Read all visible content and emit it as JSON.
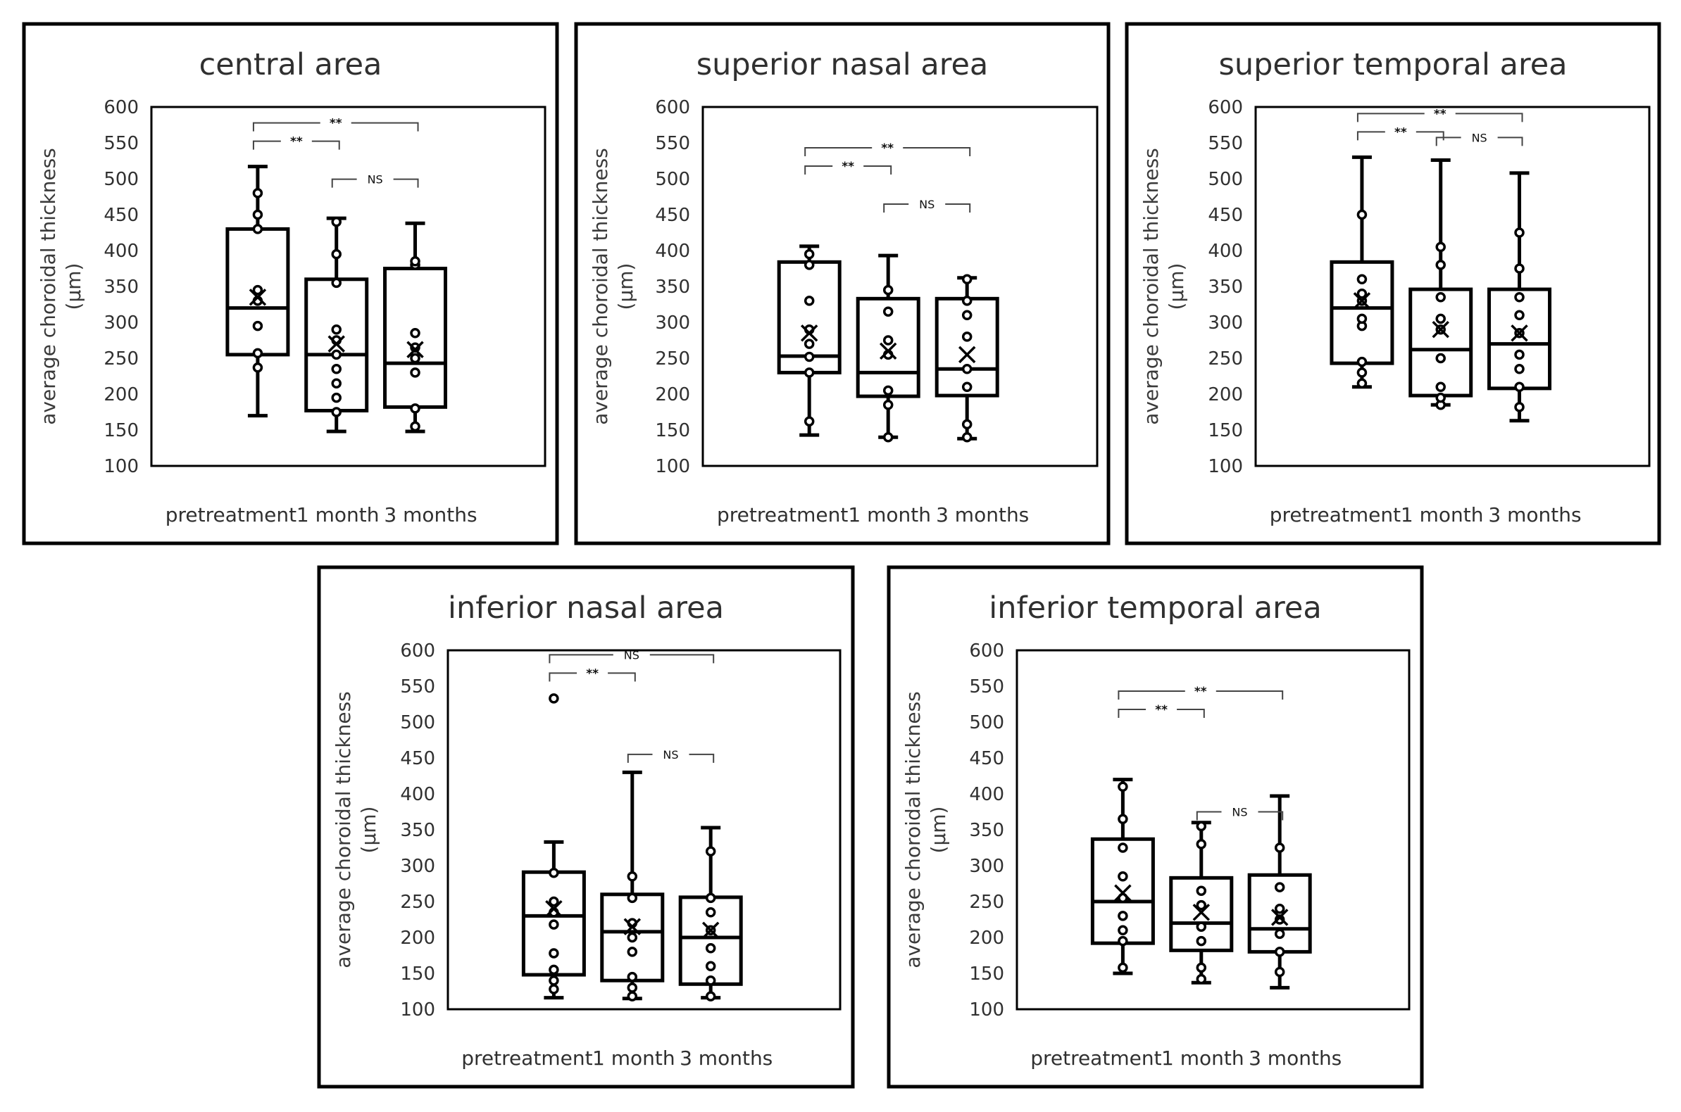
{
  "chart_data": [
    {
      "type": "box",
      "title": "central area",
      "xlabel": "",
      "ylabel": [
        "average choroidal thickness",
        "(µm)"
      ],
      "ylim": [
        100,
        600
      ],
      "yticks": [
        100,
        150,
        200,
        250,
        300,
        350,
        400,
        450,
        500,
        550,
        600
      ],
      "categories": [
        "pretreatment",
        "1 month",
        "3 months"
      ],
      "series": [
        {
          "name": "pretreatment",
          "min": 170,
          "q1": 255,
          "median": 320,
          "q3": 430,
          "max": 517,
          "mean": 335,
          "points": [
            237,
            257,
            295,
            330,
            345,
            430,
            450,
            480
          ]
        },
        {
          "name": "1 month",
          "min": 148,
          "q1": 177,
          "median": 255,
          "q3": 360,
          "max": 445,
          "mean": 270,
          "points": [
            175,
            195,
            215,
            235,
            255,
            275,
            290,
            355,
            395,
            440
          ]
        },
        {
          "name": "3 months",
          "min": 148,
          "q1": 182,
          "median": 243,
          "q3": 375,
          "max": 438,
          "mean": 262,
          "points": [
            155,
            180,
            230,
            250,
            265,
            285,
            380,
            385
          ]
        }
      ],
      "annotations": [
        {
          "from": "pretreatment",
          "to": "1 month",
          "label": "**"
        },
        {
          "from": "pretreatment",
          "to": "3 months",
          "label": "**"
        },
        {
          "from": "1 month",
          "to": "3 months",
          "label": "NS"
        }
      ]
    },
    {
      "type": "box",
      "title": "superior nasal area",
      "xlabel": "",
      "ylabel": [
        "average choroidal thickness",
        "(µm)"
      ],
      "ylim": [
        100,
        600
      ],
      "yticks": [
        100,
        150,
        200,
        250,
        300,
        350,
        400,
        450,
        500,
        550,
        600
      ],
      "categories": [
        "pretreatment",
        "1 month",
        "3 months"
      ],
      "series": [
        {
          "name": "pretreatment",
          "min": 143,
          "q1": 230,
          "median": 253,
          "q3": 384,
          "max": 406,
          "mean": 285,
          "points": [
            162,
            230,
            252,
            270,
            290,
            330,
            380,
            395
          ]
        },
        {
          "name": "1 month",
          "min": 140,
          "q1": 197,
          "median": 230,
          "q3": 333,
          "max": 393,
          "mean": 260,
          "points": [
            140,
            185,
            205,
            255,
            275,
            315,
            345
          ]
        },
        {
          "name": "3 months",
          "min": 138,
          "q1": 198,
          "median": 235,
          "q3": 333,
          "max": 362,
          "mean": 255,
          "points": [
            140,
            158,
            210,
            235,
            280,
            310,
            330,
            360
          ]
        }
      ],
      "annotations": [
        {
          "from": "pretreatment",
          "to": "1 month",
          "label": "**"
        },
        {
          "from": "pretreatment",
          "to": "3 months",
          "label": "**"
        },
        {
          "from": "1 month",
          "to": "3 months",
          "label": "NS"
        }
      ]
    },
    {
      "type": "box",
      "title": "superior temporal area",
      "xlabel": "",
      "ylabel": [
        "average choroidal thickness",
        "(µm)"
      ],
      "ylim": [
        100,
        600
      ],
      "yticks": [
        100,
        150,
        200,
        250,
        300,
        350,
        400,
        450,
        500,
        550,
        600
      ],
      "categories": [
        "pretreatment",
        "1 month",
        "3 months"
      ],
      "series": [
        {
          "name": "pretreatment",
          "min": 210,
          "q1": 243,
          "median": 320,
          "q3": 384,
          "max": 530,
          "mean": 330,
          "points": [
            215,
            230,
            245,
            295,
            305,
            330,
            340,
            360,
            450
          ]
        },
        {
          "name": "1 month",
          "min": 185,
          "q1": 198,
          "median": 262,
          "q3": 346,
          "max": 526,
          "mean": 290,
          "points": [
            185,
            195,
            210,
            250,
            290,
            305,
            335,
            380,
            405
          ]
        },
        {
          "name": "3 months",
          "min": 163,
          "q1": 208,
          "median": 270,
          "q3": 346,
          "max": 508,
          "mean": 285,
          "points": [
            182,
            210,
            235,
            255,
            285,
            310,
            335,
            375,
            425
          ]
        }
      ],
      "annotations": [
        {
          "from": "pretreatment",
          "to": "1 month",
          "label": "**"
        },
        {
          "from": "pretreatment",
          "to": "3 months",
          "label": "**"
        },
        {
          "from": "1 month",
          "to": "3 months",
          "label": "NS"
        }
      ]
    },
    {
      "type": "box",
      "title": "inferior nasal area",
      "xlabel": "",
      "ylabel": [
        "average choroidal thickness",
        "(µm)"
      ],
      "ylim": [
        100,
        600
      ],
      "yticks": [
        100,
        150,
        200,
        250,
        300,
        350,
        400,
        450,
        500,
        550,
        600
      ],
      "categories": [
        "pretreatment",
        "1 month",
        "3 months"
      ],
      "series": [
        {
          "name": "pretreatment",
          "min": 116,
          "q1": 148,
          "median": 230,
          "q3": 291,
          "max": 333,
          "mean": 240,
          "points": [
            128,
            140,
            155,
            178,
            218,
            235,
            250,
            290,
            533
          ]
        },
        {
          "name": "1 month",
          "min": 115,
          "q1": 140,
          "median": 208,
          "q3": 260,
          "max": 430,
          "mean": 215,
          "points": [
            118,
            130,
            145,
            180,
            200,
            220,
            255,
            285
          ]
        },
        {
          "name": "3 months",
          "min": 116,
          "q1": 135,
          "median": 200,
          "q3": 256,
          "max": 353,
          "mean": 210,
          "points": [
            118,
            140,
            160,
            185,
            210,
            235,
            255,
            320
          ]
        }
      ],
      "annotations": [
        {
          "from": "pretreatment",
          "to": "1 month",
          "label": "**"
        },
        {
          "from": "pretreatment",
          "to": "3 months",
          "label": "NS"
        },
        {
          "from": "1 month",
          "to": "3 months",
          "label": "NS"
        }
      ]
    },
    {
      "type": "box",
      "title": "inferior temporal area",
      "xlabel": "",
      "ylabel": [
        "average choroidal thickness",
        "(µm)"
      ],
      "ylim": [
        100,
        600
      ],
      "yticks": [
        100,
        150,
        200,
        250,
        300,
        350,
        400,
        450,
        500,
        550,
        600
      ],
      "categories": [
        "pretreatment",
        "1 month",
        "3 months"
      ],
      "series": [
        {
          "name": "pretreatment",
          "min": 150,
          "q1": 192,
          "median": 250,
          "q3": 337,
          "max": 420,
          "mean": 262,
          "points": [
            158,
            195,
            210,
            230,
            255,
            285,
            325,
            365,
            410
          ]
        },
        {
          "name": "1 month",
          "min": 137,
          "q1": 182,
          "median": 220,
          "q3": 283,
          "max": 360,
          "mean": 235,
          "points": [
            142,
            158,
            195,
            215,
            245,
            265,
            330,
            355
          ]
        },
        {
          "name": "3 months",
          "min": 130,
          "q1": 180,
          "median": 212,
          "q3": 287,
          "max": 397,
          "mean": 228,
          "points": [
            152,
            180,
            205,
            225,
            240,
            270,
            325
          ]
        }
      ],
      "annotations": [
        {
          "from": "pretreatment",
          "to": "1 month",
          "label": "**"
        },
        {
          "from": "pretreatment",
          "to": "3 months",
          "label": "**"
        },
        {
          "from": "1 month",
          "to": "3 months",
          "label": "NS"
        }
      ]
    }
  ]
}
